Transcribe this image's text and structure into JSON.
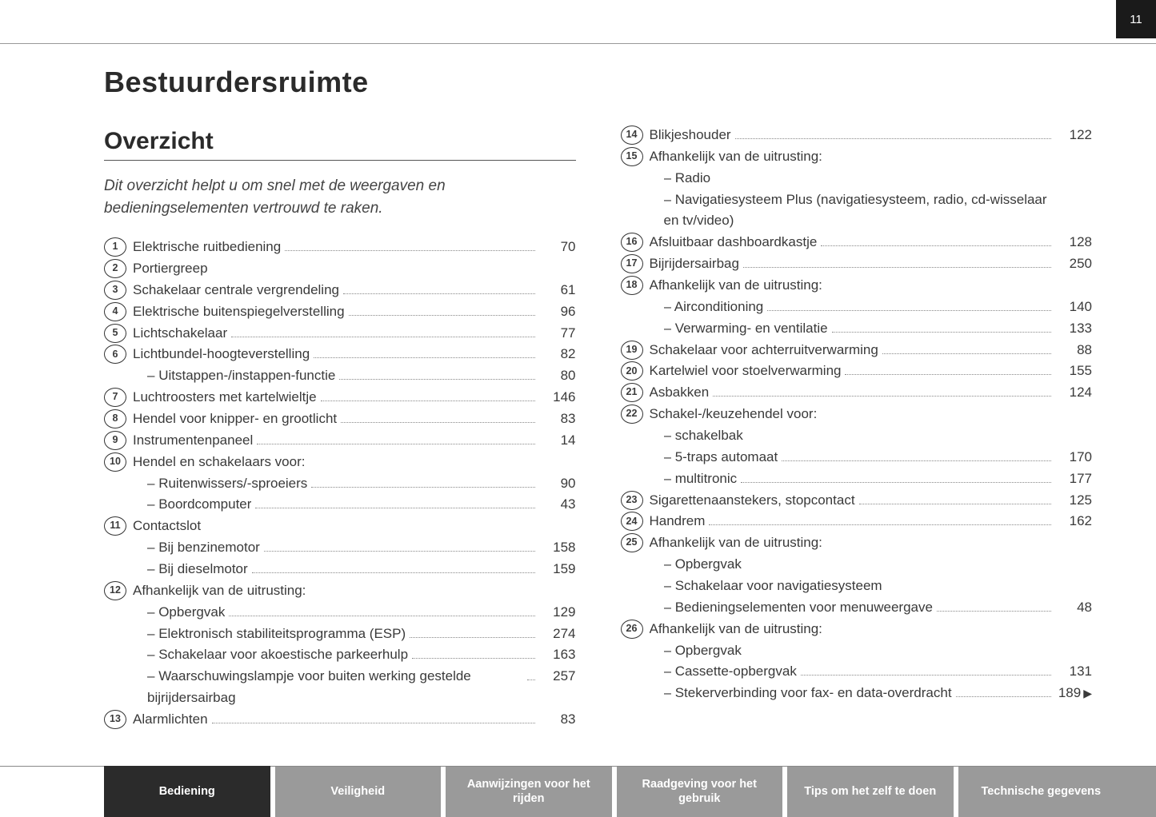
{
  "page_number": "11",
  "main_title": "Bestuurdersruimte",
  "section_title": "Overzicht",
  "intro": "Dit overzicht helpt u om snel met de weergaven en bedieningselementen vertrouwd te raken.",
  "col1": [
    {
      "n": "1",
      "label": "Elektrische ruitbediening",
      "page": "70"
    },
    {
      "n": "2",
      "label": "Portiergreep",
      "page": ""
    },
    {
      "n": "3",
      "label": "Schakelaar centrale vergrendeling",
      "page": "61"
    },
    {
      "n": "4",
      "label": "Elektrische buitenspiegelverstelling",
      "page": "96"
    },
    {
      "n": "5",
      "label": "Lichtschakelaar",
      "page": "77"
    },
    {
      "n": "6",
      "label": "Lichtbundel-hoogteverstelling",
      "page": "82"
    },
    {
      "sub": true,
      "label": "Uitstappen-/instappen-functie",
      "page": "80"
    },
    {
      "n": "7",
      "label": "Luchtroosters met kartelwieltje",
      "page": "146"
    },
    {
      "n": "8",
      "label": "Hendel voor knipper- en grootlicht",
      "page": "83"
    },
    {
      "n": "9",
      "label": "Instrumentenpaneel",
      "page": "14"
    },
    {
      "n": "10",
      "label": "Hendel en schakelaars voor:",
      "page": ""
    },
    {
      "sub": true,
      "label": "Ruitenwissers/-sproeiers",
      "page": "90"
    },
    {
      "sub": true,
      "label": "Boordcomputer",
      "page": "43"
    },
    {
      "n": "11",
      "label": "Contactslot",
      "page": ""
    },
    {
      "sub": true,
      "label": "Bij benzinemotor",
      "page": "158"
    },
    {
      "sub": true,
      "label": "Bij dieselmotor",
      "page": "159"
    },
    {
      "n": "12",
      "label": "Afhankelijk van de uitrusting:",
      "page": ""
    },
    {
      "sub": true,
      "label": "Opbergvak",
      "page": "129"
    },
    {
      "sub": true,
      "label": "Elektronisch stabiliteitsprogramma (ESP)",
      "page": "274"
    },
    {
      "sub": true,
      "label": "Schakelaar voor akoestische parkeerhulp",
      "page": "163"
    },
    {
      "sub": true,
      "label": "Waarschuwingslampje voor buiten werking gestelde bijrijdersairbag",
      "page": "257",
      "wrap": true
    },
    {
      "n": "13",
      "label": "Alarmlichten",
      "page": "83"
    }
  ],
  "col2": [
    {
      "n": "14",
      "label": "Blikjeshouder",
      "page": "122"
    },
    {
      "n": "15",
      "label": "Afhankelijk van de uitrusting:",
      "page": ""
    },
    {
      "sub": true,
      "label": "Radio",
      "page": ""
    },
    {
      "sub": true,
      "label": "Navigatiesysteem Plus (navigatiesysteem, radio, cd-wisselaar en tv/video)",
      "page": "",
      "wrap": true
    },
    {
      "n": "16",
      "label": "Afsluitbaar dashboardkastje",
      "page": "128"
    },
    {
      "n": "17",
      "label": "Bijrijdersairbag",
      "page": "250"
    },
    {
      "n": "18",
      "label": "Afhankelijk van de uitrusting:",
      "page": ""
    },
    {
      "sub": true,
      "label": "Airconditioning",
      "page": "140"
    },
    {
      "sub": true,
      "label": "Verwarming- en ventilatie",
      "page": "133"
    },
    {
      "n": "19",
      "label": "Schakelaar voor achterruitverwarming",
      "page": "88"
    },
    {
      "n": "20",
      "label": "Kartelwiel voor stoelverwarming",
      "page": "155"
    },
    {
      "n": "21",
      "label": "Asbakken",
      "page": "124"
    },
    {
      "n": "22",
      "label": "Schakel-/keuzehendel voor:",
      "page": ""
    },
    {
      "sub": true,
      "label": "schakelbak",
      "page": ""
    },
    {
      "sub": true,
      "label": "5-traps automaat",
      "page": "170"
    },
    {
      "sub": true,
      "label": "multitronic",
      "page": "177"
    },
    {
      "n": "23",
      "label": "Sigarettenaanstekers, stopcontact",
      "page": "125"
    },
    {
      "n": "24",
      "label": "Handrem",
      "page": "162"
    },
    {
      "n": "25",
      "label": "Afhankelijk van de uitrusting:",
      "page": ""
    },
    {
      "sub": true,
      "label": "Opbergvak",
      "page": ""
    },
    {
      "sub": true,
      "label": "Schakelaar voor navigatiesysteem",
      "page": ""
    },
    {
      "sub": true,
      "label": "Bedieningselementen voor menuweergave",
      "page": "48"
    },
    {
      "n": "26",
      "label": "Afhankelijk van de uitrusting:",
      "page": ""
    },
    {
      "sub": true,
      "label": "Opbergvak",
      "page": ""
    },
    {
      "sub": true,
      "label": "Cassette-opbergvak",
      "page": "131"
    },
    {
      "sub": true,
      "label": "Stekerverbinding voor fax- en data-overdracht",
      "page": "189",
      "arrow": true
    }
  ],
  "footer_tabs": [
    {
      "label": "Bediening",
      "active": true
    },
    {
      "label": "Veiligheid",
      "active": false
    },
    {
      "label": "Aanwijzingen voor het rijden",
      "active": false
    },
    {
      "label": "Raadgeving voor het gebruik",
      "active": false
    },
    {
      "label": "Tips om het zelf te doen",
      "active": false
    },
    {
      "label": "Technische gegevens",
      "active": false
    }
  ]
}
